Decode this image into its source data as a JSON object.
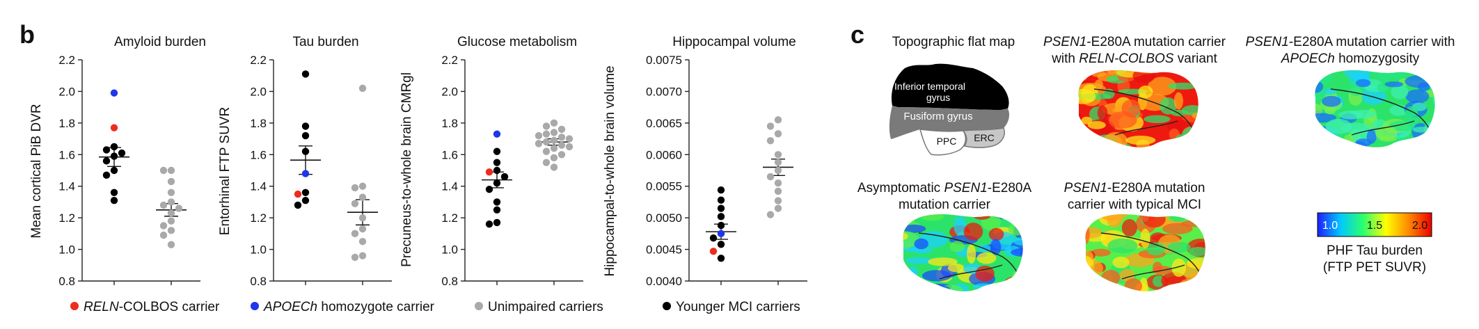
{
  "panel_labels": {
    "b": "b",
    "c": "c"
  },
  "chart_data": [
    {
      "type": "scatter",
      "title": "Amyloid burden",
      "ylabel": "Mean cortical PiB DVR",
      "ylim": [
        0.8,
        2.2
      ],
      "yticks": [
        "0.8",
        "1.0",
        "1.2",
        "1.4",
        "1.6",
        "1.8",
        "2.0",
        "2.2"
      ],
      "groups": [
        {
          "points": [
            1.99,
            1.77,
            1.65,
            1.63,
            1.61,
            1.59,
            1.56,
            1.5,
            1.47,
            1.36,
            1.31
          ],
          "colors": [
            "#2036ea",
            "#ee2b1f",
            "#000000",
            "#000000",
            "#000000",
            "#000000",
            "#000000",
            "#000000",
            "#000000",
            "#000000",
            "#000000"
          ],
          "mean": 1.585,
          "sem": 0.06
        },
        {
          "points": [
            1.5,
            1.5,
            1.43,
            1.36,
            1.3,
            1.28,
            1.26,
            1.23,
            1.18,
            1.15,
            1.12,
            1.09,
            1.03
          ],
          "colors": [
            "#a9a9a9"
          ],
          "mean": 1.25,
          "sem": 0.04
        }
      ]
    },
    {
      "type": "scatter",
      "title": "Tau burden",
      "ylabel": "Entorhinal FTP SUVR",
      "ylim": [
        0.8,
        2.2
      ],
      "yticks": [
        "0.8",
        "1.0",
        "1.2",
        "1.4",
        "1.6",
        "1.8",
        "2.0",
        "2.2"
      ],
      "groups": [
        {
          "points": [
            2.11,
            1.78,
            1.72,
            1.62,
            1.48,
            1.36,
            1.35,
            1.31,
            1.28
          ],
          "colors": [
            "#000000",
            "#000000",
            "#000000",
            "#000000",
            "#2036ea",
            "#000000",
            "#ee2b1f",
            "#000000",
            "#000000"
          ],
          "mean": 1.565,
          "sem": 0.09
        },
        {
          "points": [
            2.02,
            1.4,
            1.39,
            1.33,
            1.29,
            1.2,
            1.13,
            1.1,
            1.05,
            0.96,
            0.95
          ],
          "colors": [
            "#a9a9a9"
          ],
          "mean": 1.235,
          "sem": 0.08
        }
      ]
    },
    {
      "type": "scatter",
      "title": "Glucose metabolism",
      "ylabel": "Precuneus-to-whole brain CMRgl",
      "ylim": [
        0.8,
        2.2
      ],
      "yticks": [
        "0.8",
        "1.0",
        "1.2",
        "1.4",
        "1.6",
        "1.8",
        "2.0",
        "2.2"
      ],
      "groups": [
        {
          "points": [
            1.73,
            1.62,
            1.55,
            1.5,
            1.49,
            1.46,
            1.42,
            1.38,
            1.3,
            1.25,
            1.17,
            1.16
          ],
          "colors": [
            "#2036ea",
            "#000000",
            "#000000",
            "#000000",
            "#ee2b1f",
            "#000000",
            "#000000",
            "#000000",
            "#000000",
            "#000000",
            "#000000",
            "#000000"
          ],
          "mean": 1.44,
          "sem": 0.05
        },
        {
          "points": [
            1.8,
            1.78,
            1.76,
            1.74,
            1.73,
            1.72,
            1.71,
            1.7,
            1.69,
            1.68,
            1.67,
            1.66,
            1.65,
            1.64,
            1.62,
            1.6,
            1.58,
            1.55,
            1.52
          ],
          "colors": [
            "#a9a9a9"
          ],
          "mean": 1.68,
          "sem": 0.02
        }
      ]
    },
    {
      "type": "scatter",
      "title": "Hippocampal volume",
      "ylabel": "Hippocampal-to-whole brain volume",
      "ylim": [
        0.004,
        0.0075
      ],
      "yticks": [
        "0.0040",
        "0.0045",
        "0.0050",
        "0.0055",
        "0.0060",
        "0.0065",
        "0.0070",
        "0.0075"
      ],
      "groups": [
        {
          "points": [
            0.00544,
            0.00528,
            0.00515,
            0.00502,
            0.00488,
            0.00475,
            0.00468,
            0.00458,
            0.00447,
            0.00436
          ],
          "colors": [
            "#000000",
            "#000000",
            "#000000",
            "#000000",
            "#000000",
            "#2036ea",
            "#000000",
            "#000000",
            "#ee2b1f",
            "#000000"
          ],
          "mean": 0.00478,
          "sem": 0.00012
        },
        {
          "points": [
            0.00655,
            0.00645,
            0.00633,
            0.00622,
            0.006,
            0.00588,
            0.00575,
            0.00565,
            0.00555,
            0.00542,
            0.00527,
            0.00515,
            0.00505
          ],
          "colors": [
            "#a9a9a9"
          ],
          "mean": 0.0058,
          "sem": 0.00013
        }
      ]
    }
  ],
  "legend": [
    {
      "italic": "RELN",
      "text": "-COLBOS carrier",
      "color": "#ee2b1f"
    },
    {
      "italic": "APOECh",
      "text": " homozygote carrier",
      "color": "#2036ea"
    },
    {
      "italic": "",
      "text": "Unimpaired carriers",
      "color": "#a9a9a9"
    },
    {
      "italic": "",
      "text": "Younger MCI carriers",
      "color": "#000000"
    }
  ],
  "brain_panel": {
    "flatmap_title": "Topographic flat map",
    "regions": {
      "inferior_temporal": [
        "Inferior temporal",
        "gyrus"
      ],
      "fusiform": "Fusiform gyrus",
      "ppc": "PPC",
      "erc": "ERC"
    },
    "maps": [
      {
        "title_italic": "PSEN1",
        "title_rest": "-E280A mutation carrier",
        "line2_pre": "with ",
        "line2_italic": "RELN-COLBOS",
        "line2_post": " variant",
        "mode": "hot"
      },
      {
        "title_italic": "PSEN1",
        "title_rest": "-E280A mutation carrier with",
        "line2_pre": "",
        "line2_italic": "APOECh",
        "line2_post": " homozygosity",
        "mode": "cool"
      },
      {
        "title_pre": "Asymptomatic ",
        "title_italic": "PSEN1",
        "title_rest": "-E280A",
        "line2_pre": "mutation carrier",
        "line2_italic": "",
        "line2_post": "",
        "mode": "mixed"
      },
      {
        "title_pre": "",
        "title_italic": "PSEN1",
        "title_rest": "-E280A mutation",
        "line2_pre": "carrier with typical MCI",
        "line2_italic": "",
        "line2_post": "",
        "mode": "warm"
      }
    ],
    "colorbar": {
      "ticks": [
        "1.0",
        "1.5",
        "2.0"
      ],
      "label_line1": "PHF Tau burden",
      "label_line2": "(FTP PET SUVR)",
      "colors": [
        "#1e1eff",
        "#00c8ff",
        "#2cff6c",
        "#ffff00",
        "#ff8800",
        "#ee0000"
      ]
    }
  }
}
